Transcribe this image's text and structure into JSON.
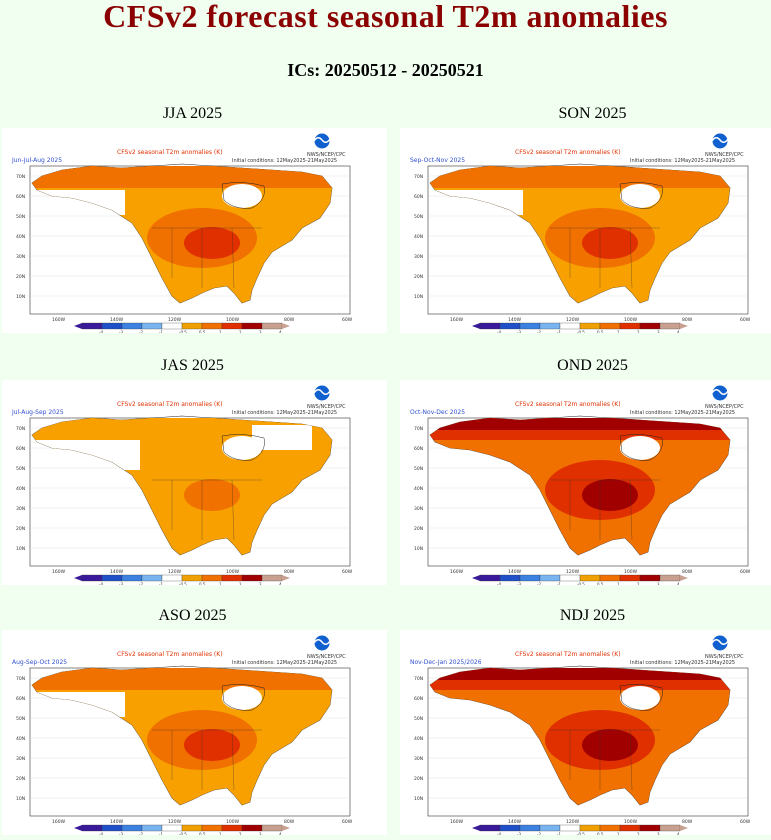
{
  "page_title": "CFSv2 forecast seasonal T2m anomalies",
  "ics": "ICs: 20250512 - 20250521",
  "panel_common": {
    "map_title": "CFSv2 seasonal T2m anomalies (K)",
    "init_conditions": "Initial conditions: 12May2025-21May2025",
    "agency": "NWS/NCEP/CPC",
    "lat_labels": [
      "70N",
      "60N",
      "50N",
      "40N",
      "30N",
      "20N",
      "10N"
    ],
    "lon_labels": [
      "160W",
      "140W",
      "120W",
      "100W",
      "80W",
      "60W"
    ],
    "colorbar_labels": [
      "-4",
      "-3",
      "-2",
      "-1",
      "-0.5",
      "0.5",
      "1",
      "2",
      "3",
      "4"
    ],
    "colorbar_colors": [
      "#3a1a9a",
      "#2050c8",
      "#3c80e0",
      "#78b4f0",
      "#ffffff",
      "#f0a000",
      "#f07000",
      "#e03000",
      "#a00000",
      "#c8a090"
    ]
  },
  "panels": [
    {
      "season": "JJA 2025",
      "months": "Jun-Jul-Aug 2025",
      "level": 1
    },
    {
      "season": "SON 2025",
      "months": "Sep-Oct-Nov 2025",
      "level": 1
    },
    {
      "season": "JAS 2025",
      "months": "Jul-Aug-Sep 2025",
      "level": 0
    },
    {
      "season": "OND 2025",
      "months": "Oct-Nov-Dec 2025",
      "level": 2
    },
    {
      "season": "ASO 2025",
      "months": "Aug-Sep-Oct 2025",
      "level": 1
    },
    {
      "season": "NDJ 2025",
      "months": "Nov-Dec-Jan 2025/2026",
      "level": 2
    }
  ]
}
